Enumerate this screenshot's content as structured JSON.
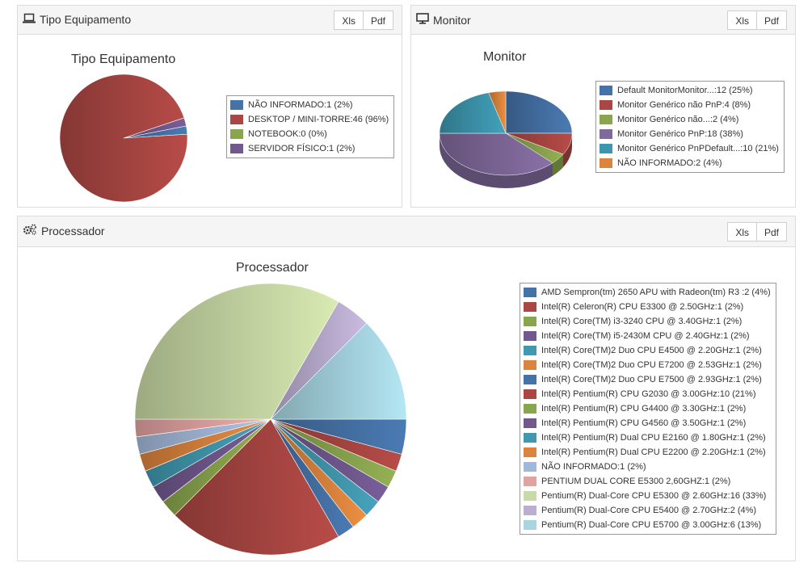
{
  "panels": {
    "tipo": {
      "title": "Tipo Equipamento",
      "xls_label": "Xls",
      "pdf_label": "Pdf"
    },
    "monitor": {
      "title": "Monitor",
      "xls_label": "Xls",
      "pdf_label": "Pdf"
    },
    "processador": {
      "title": "Processador",
      "xls_label": "Xls",
      "pdf_label": "Pdf"
    }
  },
  "icons": {
    "tipo": "laptop-icon",
    "monitor": "desktop-monitor-icon",
    "processador": "gears-icon"
  },
  "chart_data": [
    {
      "type": "pie",
      "title": "Tipo Equipamento",
      "slices": [
        {
          "label": "NÃO INFORMADO:1 (2%)",
          "value": 1,
          "color": "#4572a7"
        },
        {
          "label": "DESKTOP / MINI-TORRE:46 (96%)",
          "value": 46,
          "color": "#aa4643"
        },
        {
          "label": "NOTEBOOK:0 (0%)",
          "value": 0,
          "color": "#89a54e"
        },
        {
          "label": "SERVIDOR FÍSICO:1 (2%)",
          "value": 1,
          "color": "#71588f"
        }
      ]
    },
    {
      "type": "pie",
      "title": "Monitor",
      "style": "3d",
      "slices": [
        {
          "label": "Default MonitorMonitor...:12 (25%)",
          "value": 12,
          "color": "#4572a7"
        },
        {
          "label": "Monitor Genérico não PnP:4 (8%)",
          "value": 4,
          "color": "#aa4643"
        },
        {
          "label": "Monitor Genérico não...:2 (4%)",
          "value": 2,
          "color": "#89a54e"
        },
        {
          "label": "Monitor Genérico PnP:18 (38%)",
          "value": 18,
          "color": "#80699b"
        },
        {
          "label": "Monitor Genérico PnPDefault...:10 (21%)",
          "value": 10,
          "color": "#3d96ae"
        },
        {
          "label": "NÃO INFORMADO:2 (4%)",
          "value": 2,
          "color": "#db843d"
        }
      ]
    },
    {
      "type": "pie",
      "title": "Processador",
      "slices": [
        {
          "label": "AMD Sempron(tm) 2650 APU with Radeon(tm) R3 :2 (4%)",
          "value": 2,
          "color": "#4572a7"
        },
        {
          "label": "Intel(R) Celeron(R) CPU E3300 @ 2.50GHz:1 (2%)",
          "value": 1,
          "color": "#aa4643"
        },
        {
          "label": "Intel(R) Core(TM) i3-3240 CPU @ 3.40GHz:1 (2%)",
          "value": 1,
          "color": "#89a54e"
        },
        {
          "label": "Intel(R) Core(TM) i5-2430M CPU @ 2.40GHz:1 (2%)",
          "value": 1,
          "color": "#71588f"
        },
        {
          "label": "Intel(R) Core(TM)2 Duo CPU E4500 @ 2.20GHz:1 (2%)",
          "value": 1,
          "color": "#4198af"
        },
        {
          "label": "Intel(R) Core(TM)2 Duo CPU E7200 @ 2.53GHz:1 (2%)",
          "value": 1,
          "color": "#db843d"
        },
        {
          "label": "Intel(R) Core(TM)2 Duo CPU E7500 @ 2.93GHz:1 (2%)",
          "value": 1,
          "color": "#4572a7"
        },
        {
          "label": "Intel(R) Pentium(R) CPU G2030 @ 3.00GHz:10 (21%)",
          "value": 10,
          "color": "#aa4643"
        },
        {
          "label": "Intel(R) Pentium(R) CPU G4400 @ 3.30GHz:1 (2%)",
          "value": 1,
          "color": "#89a54e"
        },
        {
          "label": "Intel(R) Pentium(R) CPU G4560 @ 3.50GHz:1 (2%)",
          "value": 1,
          "color": "#71588f"
        },
        {
          "label": "Intel(R) Pentium(R) Dual CPU E2160 @ 1.80GHz:1 (2%)",
          "value": 1,
          "color": "#4198af"
        },
        {
          "label": "Intel(R) Pentium(R) Dual CPU E2200 @ 2.20GHz:1 (2%)",
          "value": 1,
          "color": "#db843d"
        },
        {
          "label": "NÃO INFORMADO:1 (2%)",
          "value": 1,
          "color": "#a3b8d9"
        },
        {
          "label": "PENTIUM DUAL CORE E5300 2,60GHZ:1 (2%)",
          "value": 1,
          "color": "#e0a3a2"
        },
        {
          "label": "Pentium(R) Dual-Core CPU E5300 @ 2.60GHz:16 (33%)",
          "value": 16,
          "color": "#c9daa6"
        },
        {
          "label": "Pentium(R) Dual-Core CPU E5400 @ 2.70GHz:2 (4%)",
          "value": 2,
          "color": "#bbaed1"
        },
        {
          "label": "Pentium(R) Dual-Core CPU E5700 @ 3.00GHz:6 (13%)",
          "value": 6,
          "color": "#a7d6e2"
        }
      ]
    }
  ]
}
